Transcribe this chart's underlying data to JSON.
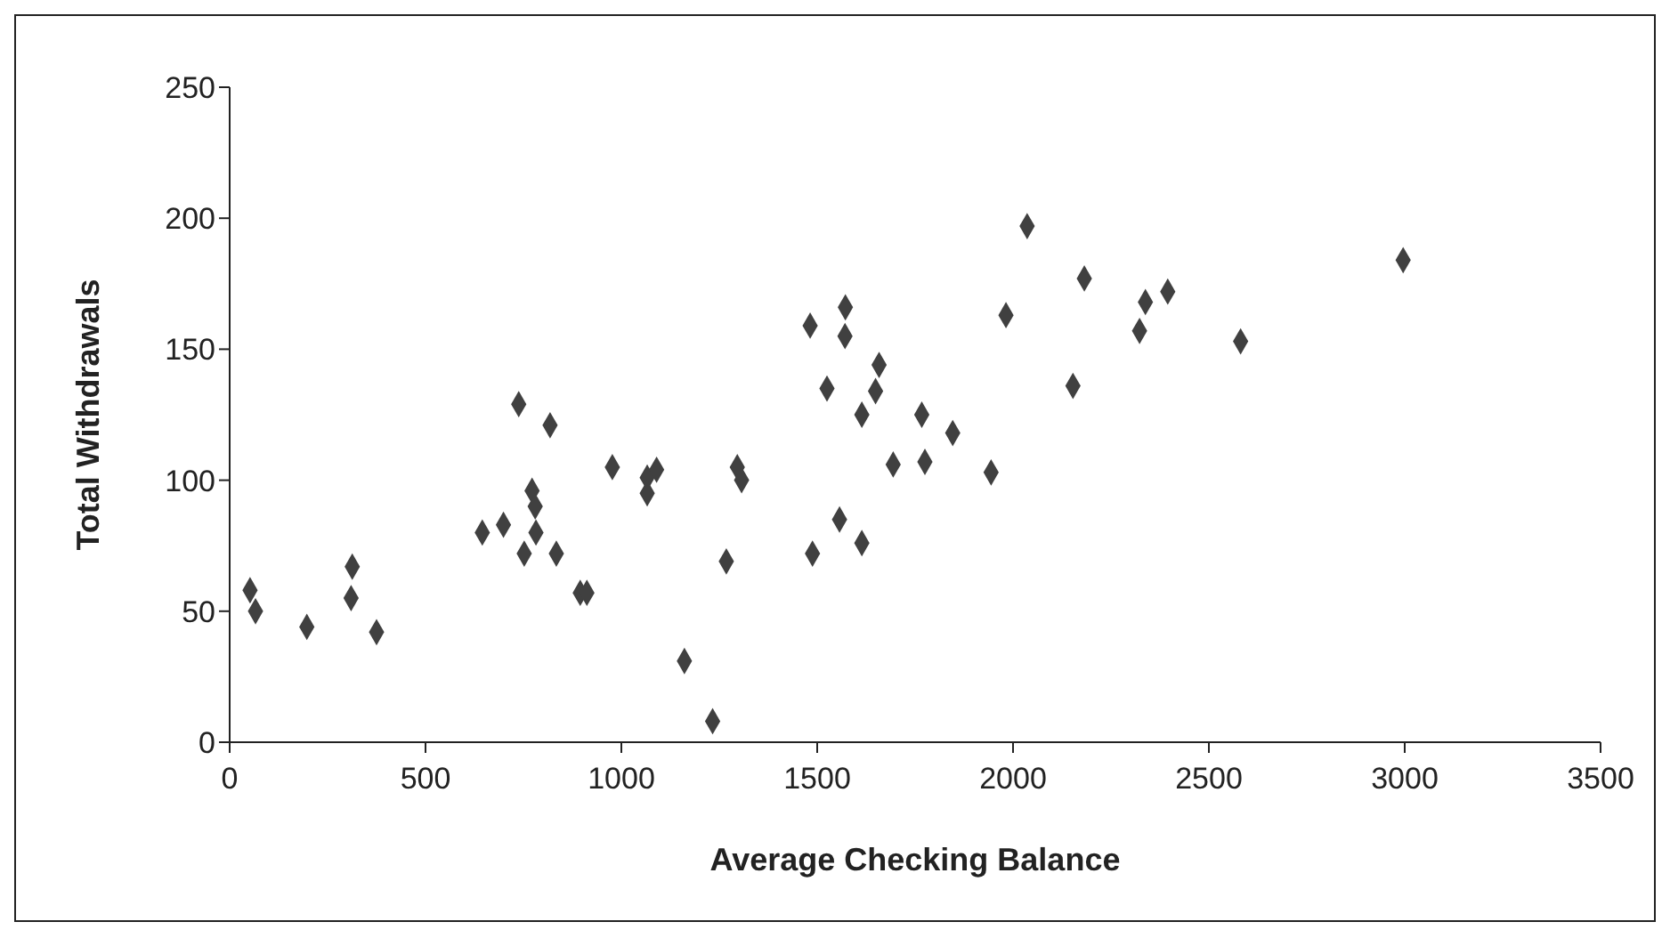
{
  "chart_data": {
    "type": "scatter",
    "xlabel": "Average Checking Balance",
    "ylabel": "Total Withdrawals",
    "xlim": [
      0,
      3500
    ],
    "xticks": [
      0,
      500,
      1000,
      1500,
      2000,
      2500,
      3000,
      3500
    ],
    "ylim": [
      0,
      250
    ],
    "yticks": [
      0,
      50,
      100,
      150,
      200,
      250
    ],
    "grid": false,
    "legend": false,
    "marker": "diamond",
    "series": [
      {
        "color": "#404040",
        "x": [
          52,
          66,
          197,
          313,
          310,
          375,
          738,
          818,
          645,
          699,
          772,
          780,
          782,
          752,
          834,
          895,
          912,
          977,
          1066,
          1066,
          1090,
          1161,
          1233,
          1268,
          1296,
          1307,
          1482,
          1572,
          1571,
          1658,
          1525,
          1649,
          1614,
          1767,
          1846,
          1694,
          1775,
          1944,
          1557,
          1488,
          1614,
          2036,
          2182,
          1982,
          2338,
          2395,
          2323,
          2153,
          2581,
          2996
        ],
        "values": [
          58,
          50,
          44,
          67,
          55,
          42,
          129,
          121,
          80,
          83,
          96,
          90,
          80,
          72,
          72,
          57,
          57,
          105,
          101,
          95,
          104,
          31,
          8,
          69,
          105,
          100,
          159,
          166,
          155,
          144,
          135,
          134,
          125,
          125,
          118,
          106,
          107,
          103,
          85,
          72,
          76,
          197,
          177,
          163,
          168,
          172,
          157,
          136,
          153,
          184
        ]
      }
    ]
  }
}
